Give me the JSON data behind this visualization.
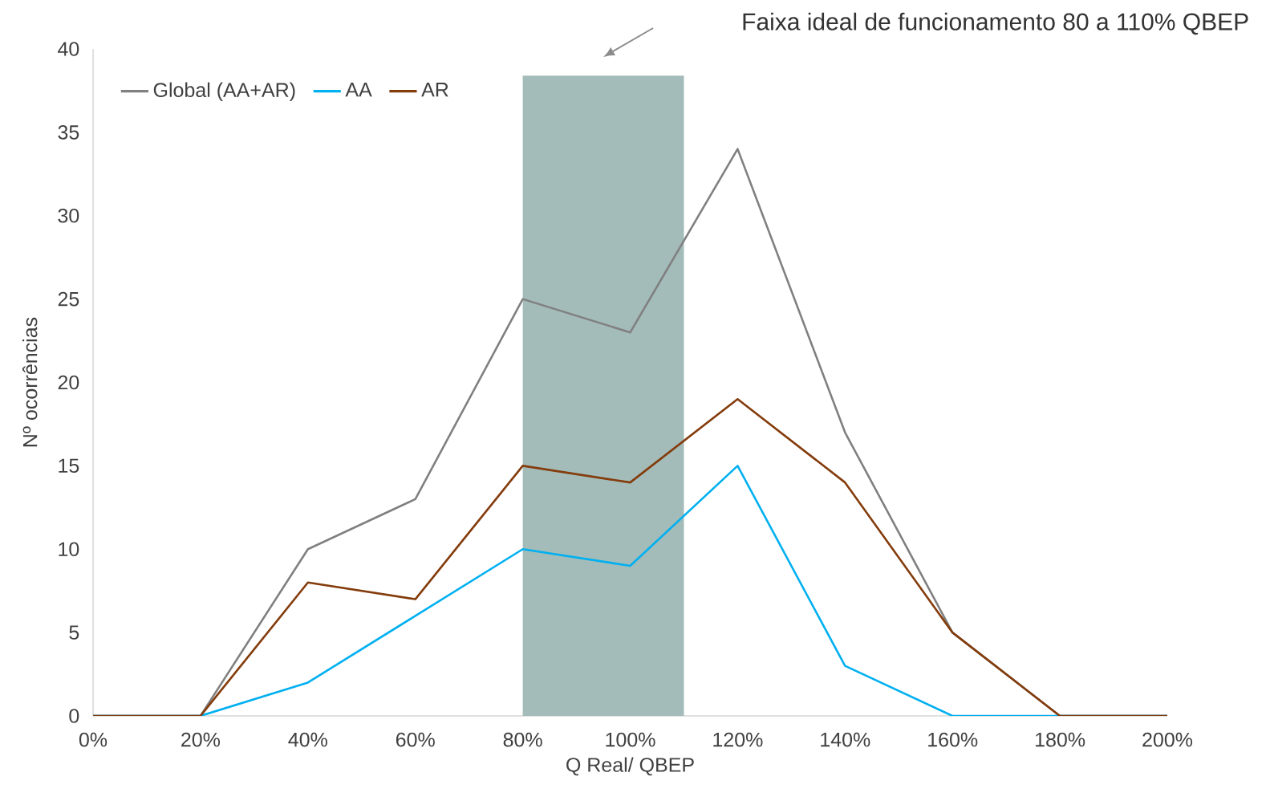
{
  "chart_data": {
    "type": "line",
    "xlabel": "Q Real/ QBEP",
    "ylabel": "Nº ocorrências",
    "annotations": [
      "Faixa ideal de funcionamento 80 a 110% QBEP"
    ],
    "x": [
      0,
      20,
      40,
      60,
      80,
      100,
      120,
      140,
      160,
      180,
      200
    ],
    "series": [
      {
        "name": "Global (AA+AR)",
        "color": "#808080",
        "values": [
          0,
          0,
          10,
          13,
          25,
          23,
          34,
          17,
          5,
          0,
          0
        ]
      },
      {
        "name": "AA",
        "color": "#00b0f0",
        "values": [
          0,
          0,
          2,
          6,
          10,
          9,
          15,
          3,
          0,
          0,
          0
        ]
      },
      {
        "name": "AR",
        "color": "#843c0c",
        "values": [
          0,
          0,
          8,
          7,
          15,
          14,
          19,
          14,
          5,
          0,
          0
        ]
      }
    ],
    "bands": [
      {
        "axis": "x",
        "from": 80,
        "to": 110,
        "color": "#a3bcb9"
      }
    ],
    "xlim": [
      0,
      200
    ],
    "ylim": [
      0,
      40
    ],
    "xticks": [
      {
        "value": 0,
        "label": "0%"
      },
      {
        "value": 20,
        "label": "20%"
      },
      {
        "value": 40,
        "label": "40%"
      },
      {
        "value": 60,
        "label": "60%"
      },
      {
        "value": 80,
        "label": "80%"
      },
      {
        "value": 100,
        "label": "100%"
      },
      {
        "value": 120,
        "label": "120%"
      },
      {
        "value": 140,
        "label": "140%"
      },
      {
        "value": 160,
        "label": "160%"
      },
      {
        "value": 180,
        "label": "180%"
      },
      {
        "value": 200,
        "label": "200%"
      }
    ],
    "yticks": [
      0,
      5,
      10,
      15,
      20,
      25,
      30,
      35,
      40
    ],
    "grid": false,
    "legend": "top left",
    "marker": "none",
    "line_style": "solid"
  }
}
